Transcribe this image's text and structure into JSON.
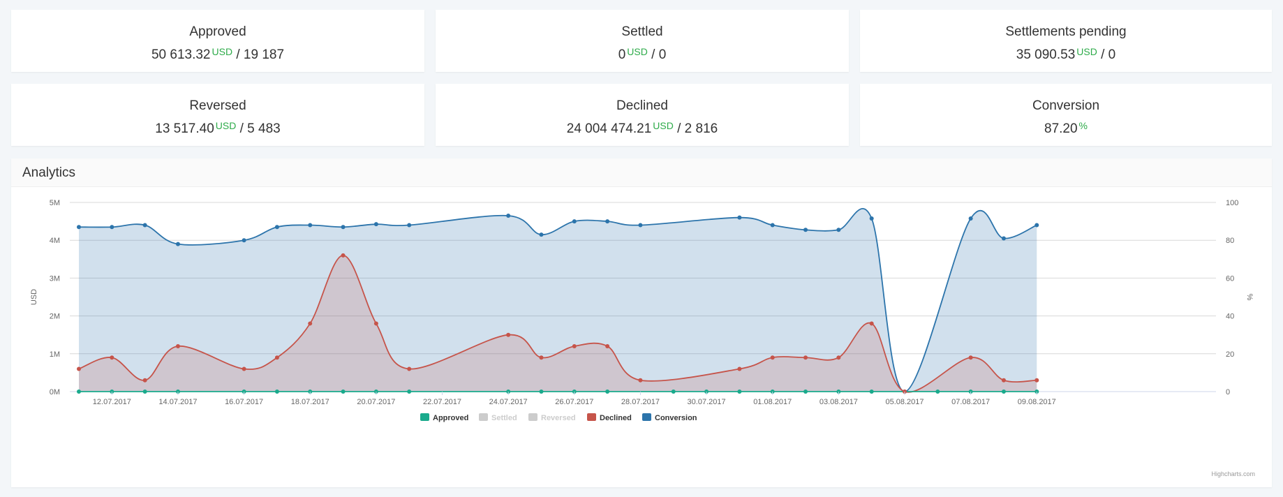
{
  "cards": [
    {
      "title": "Approved",
      "amount": "50 613.32",
      "unit": "USD",
      "count": "/ 19 187"
    },
    {
      "title": "Settled",
      "amount": "0",
      "unit": "USD",
      "count": "/ 0"
    },
    {
      "title": "Settlements pending",
      "amount": "35 090.53",
      "unit": "USD",
      "count": "/ 0"
    },
    {
      "title": "Reversed",
      "amount": "13 517.40",
      "unit": "USD",
      "count": "/ 5 483"
    },
    {
      "title": "Declined",
      "amount": "24 004 474.21",
      "unit": "USD",
      "count": "/ 2 816"
    },
    {
      "title": "Conversion",
      "amount": "87.20",
      "unit": "%",
      "count": ""
    }
  ],
  "analytics": {
    "title": "Analytics",
    "credits": "Highcharts.com"
  },
  "chart_data": {
    "type": "area",
    "x_start": "11.07.2017",
    "x_tick_labels": [
      "12.07.2017",
      "14.07.2017",
      "16.07.2017",
      "18.07.2017",
      "20.07.2017",
      "22.07.2017",
      "24.07.2017",
      "26.07.2017",
      "28.07.2017",
      "30.07.2017",
      "01.08.2017",
      "03.08.2017",
      "05.08.2017",
      "07.08.2017",
      "09.08.2017"
    ],
    "y_left": {
      "label": "USD",
      "ticks": [
        "0M",
        "1M",
        "2M",
        "3M",
        "4M",
        "5M"
      ],
      "min": 0,
      "max": 5000000
    },
    "y_right": {
      "label": "%",
      "ticks": [
        "0",
        "20",
        "40",
        "60",
        "80",
        "100"
      ],
      "min": 0,
      "max": 100
    },
    "grid": true,
    "legend_position": "bottom-center",
    "series": [
      {
        "name": "Approved",
        "color": "#1aaa8c",
        "visible": true,
        "axis": "left",
        "points": [
          [
            0,
            0
          ],
          [
            1,
            0
          ],
          [
            2,
            0
          ],
          [
            3,
            0
          ],
          [
            5,
            0
          ],
          [
            6,
            0
          ],
          [
            7,
            0
          ],
          [
            8,
            0
          ],
          [
            9,
            0
          ],
          [
            10,
            0
          ],
          [
            13,
            0
          ],
          [
            14,
            0
          ],
          [
            15,
            0
          ],
          [
            16,
            0
          ],
          [
            18,
            0
          ],
          [
            19,
            0
          ],
          [
            20,
            0
          ],
          [
            21,
            0
          ],
          [
            22,
            0
          ],
          [
            23,
            0
          ],
          [
            24,
            0
          ],
          [
            26,
            0
          ],
          [
            27,
            0
          ],
          [
            28,
            0
          ],
          [
            29,
            0
          ]
        ]
      },
      {
        "name": "Settled",
        "color": "#cccccc",
        "visible": false,
        "axis": "left",
        "points": []
      },
      {
        "name": "Reversed",
        "color": "#cccccc",
        "visible": false,
        "axis": "left",
        "points": []
      },
      {
        "name": "Declined",
        "color": "#c6544a",
        "visible": true,
        "axis": "left",
        "points": [
          [
            0,
            600000
          ],
          [
            1,
            900000
          ],
          [
            2,
            300000
          ],
          [
            3,
            1200000
          ],
          [
            5,
            600000
          ],
          [
            6,
            900000
          ],
          [
            7,
            1800000
          ],
          [
            8,
            3600000
          ],
          [
            9,
            1800000
          ],
          [
            10,
            600000
          ],
          [
            13,
            1500000
          ],
          [
            14,
            900000
          ],
          [
            15,
            1200000
          ],
          [
            16,
            1200000
          ],
          [
            17,
            300000
          ],
          [
            20,
            600000
          ],
          [
            21,
            900000
          ],
          [
            22,
            900000
          ],
          [
            23,
            900000
          ],
          [
            24,
            1800000
          ],
          [
            25,
            0
          ],
          [
            27,
            900000
          ],
          [
            28,
            300000
          ],
          [
            29,
            300000
          ]
        ]
      },
      {
        "name": "Conversion",
        "color": "#2c74ab",
        "visible": true,
        "axis": "right",
        "points": [
          [
            0,
            87
          ],
          [
            1,
            87
          ],
          [
            2,
            88
          ],
          [
            3,
            78
          ],
          [
            5,
            80
          ],
          [
            6,
            87
          ],
          [
            7,
            88
          ],
          [
            8,
            87
          ],
          [
            9,
            88.5
          ],
          [
            10,
            88
          ],
          [
            13,
            93
          ],
          [
            14,
            83
          ],
          [
            15,
            90
          ],
          [
            16,
            90
          ],
          [
            17,
            88
          ],
          [
            20,
            92
          ],
          [
            21,
            88
          ],
          [
            22,
            85.5
          ],
          [
            23,
            85.5
          ],
          [
            24,
            91.5
          ],
          [
            25,
            0
          ],
          [
            27,
            91.5
          ],
          [
            28,
            81
          ],
          [
            29,
            88
          ]
        ]
      }
    ]
  }
}
